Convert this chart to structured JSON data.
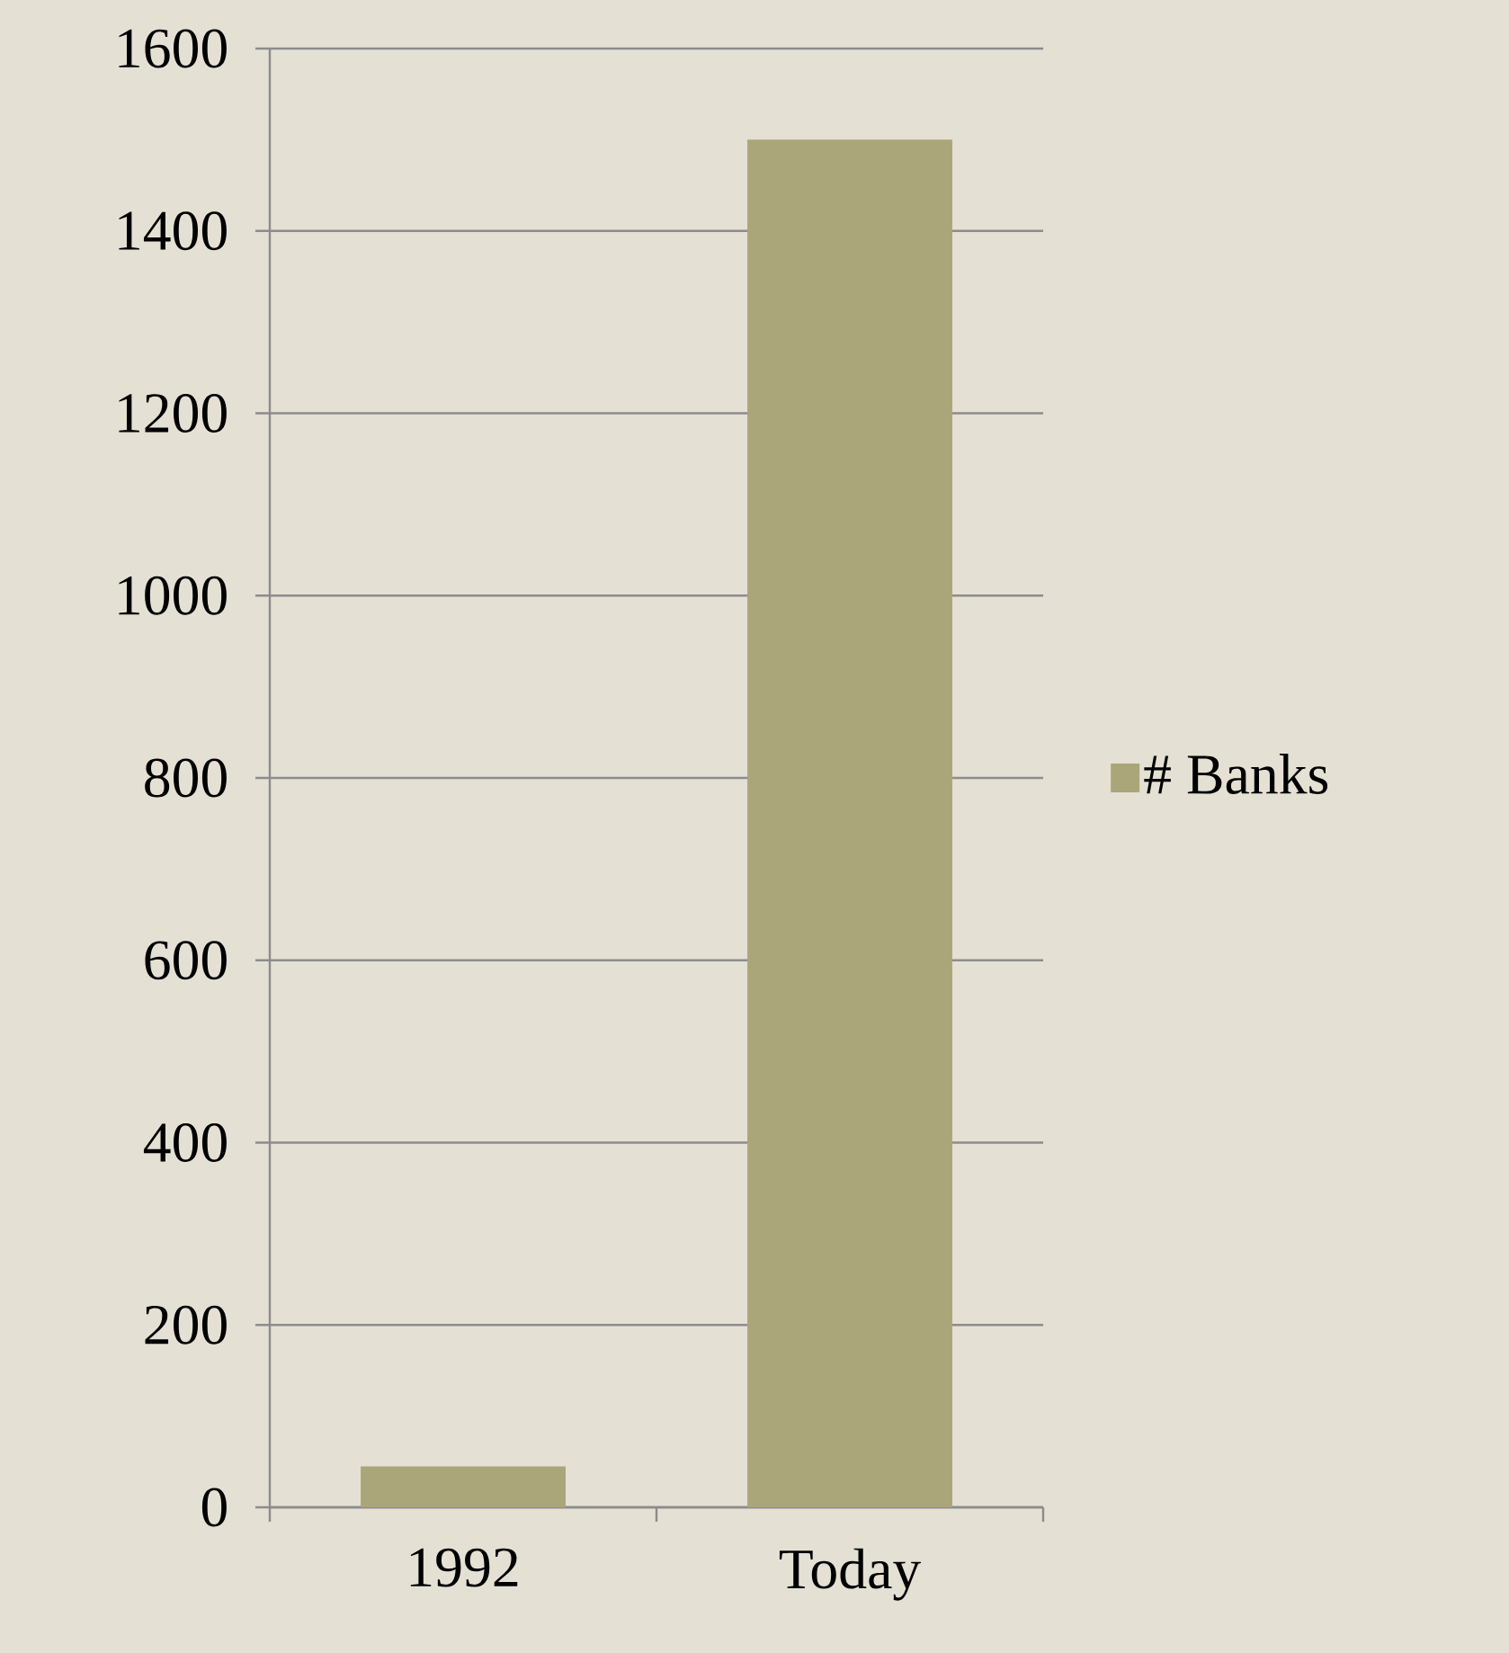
{
  "chart_data": {
    "type": "bar",
    "categories": [
      "1992",
      "Today"
    ],
    "series": [
      {
        "name": "# Banks",
        "color": "#aba679",
        "values": [
          45,
          1500
        ]
      }
    ],
    "ylim": [
      0,
      1600
    ],
    "yticks": [
      0,
      200,
      400,
      600,
      800,
      1000,
      1200,
      1400,
      1600
    ],
    "grid": "y",
    "legend": "right"
  }
}
